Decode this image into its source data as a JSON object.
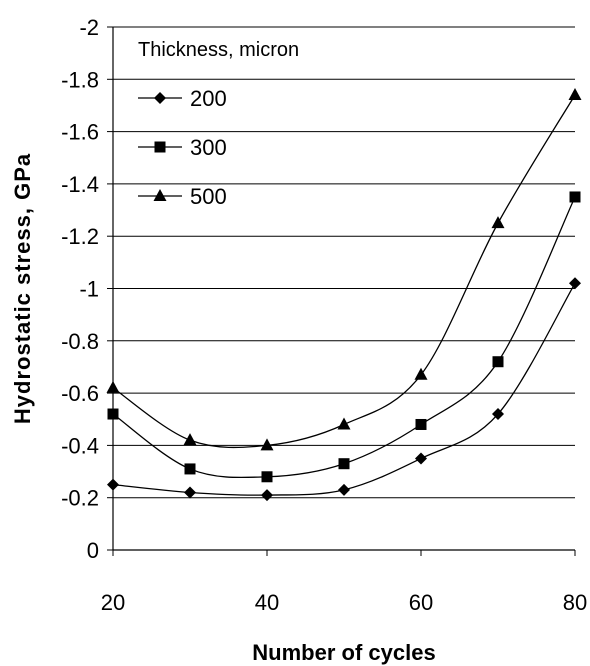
{
  "chart_data": {
    "type": "line",
    "xlabel": "Number of cycles",
    "ylabel": "Hydrostatic stress, GPa",
    "xlim": [
      20,
      80
    ],
    "ylim": [
      0,
      -2
    ],
    "y_axis_inverted": true,
    "grid": "horizontal",
    "x_ticks": [
      "20",
      "40",
      "60",
      "80"
    ],
    "y_ticks": [
      "0",
      "-0.2",
      "-0.4",
      "-0.6",
      "-0.8",
      "-1",
      "-1.2",
      "-1.4",
      "-1.6",
      "-1.8",
      "-2"
    ],
    "legend": {
      "title": "Thickness, micron",
      "placement": "top-left"
    },
    "x": [
      20,
      30,
      40,
      50,
      60,
      70,
      80
    ],
    "series": [
      {
        "name": "200",
        "marker": "diamond",
        "values": [
          -0.25,
          -0.22,
          -0.21,
          -0.23,
          -0.35,
          -0.52,
          -1.02
        ]
      },
      {
        "name": "300",
        "marker": "square",
        "values": [
          -0.52,
          -0.31,
          -0.28,
          -0.33,
          -0.48,
          -0.72,
          -1.35
        ]
      },
      {
        "name": "500",
        "marker": "triangle",
        "values": [
          -0.62,
          -0.42,
          -0.4,
          -0.48,
          -0.67,
          -1.25,
          -1.74
        ]
      }
    ]
  }
}
